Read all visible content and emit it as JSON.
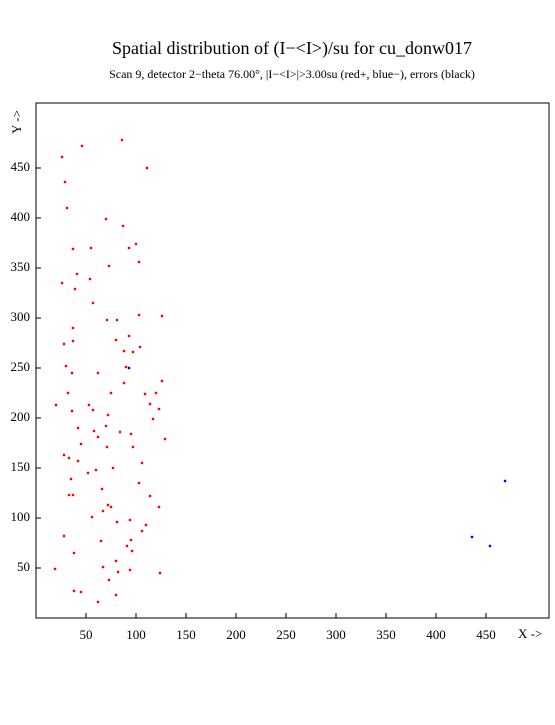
{
  "chart_data": {
    "type": "scatter",
    "title": "Spatial distribution of (I−<I>)/su for cu_donw017",
    "subtitle": "Scan  9, detector 2−theta  76.00°, |I−<I>|>3.00su (red+, blue−), errors (black)",
    "x_label": "X ->",
    "y_label": "Y ->",
    "xlim": [
      0,
      513
    ],
    "ylim": [
      0,
      515
    ],
    "xticks": [
      50,
      100,
      150,
      200,
      250,
      300,
      350,
      400,
      450
    ],
    "yticks": [
      50,
      100,
      150,
      200,
      250,
      300,
      350,
      400,
      450
    ],
    "series": [
      {
        "color": "#ff0000",
        "x": [
          86,
          46,
          26,
          111,
          29,
          31,
          70,
          87,
          100,
          55,
          93,
          37,
          103,
          73,
          41,
          54,
          26,
          39,
          57,
          103,
          126,
          71,
          81,
          37,
          93,
          37,
          80,
          28,
          104,
          88,
          97,
          30,
          90,
          62,
          36,
          126,
          88,
          75,
          32,
          109,
          120,
          114,
          20,
          53,
          123,
          57,
          36,
          72,
          117,
          70,
          42,
          58,
          84,
          95,
          62,
          45,
          129,
          97,
          71,
          28,
          33,
          42,
          106,
          77,
          60,
          52,
          35,
          103,
          66,
          37,
          33,
          114,
          72,
          75,
          123,
          56,
          67,
          94,
          81,
          110,
          106,
          28,
          65,
          95,
          91,
          38,
          96,
          80,
          67,
          19,
          94,
          82,
          124,
          73,
          38,
          45,
          80,
          62
        ],
        "y": [
          478,
          472,
          461,
          450,
          436,
          410,
          399,
          392,
          374,
          370,
          370,
          369,
          356,
          352,
          344,
          339,
          335,
          329,
          315,
          303,
          302,
          298,
          298,
          290,
          282,
          277,
          278,
          274,
          271,
          267,
          266,
          252,
          251,
          245,
          245,
          237,
          235,
          225,
          225,
          224,
          225,
          214,
          213,
          213,
          209,
          208,
          207,
          203,
          199,
          192,
          190,
          187,
          186,
          184,
          181,
          174,
          179,
          171,
          171,
          163,
          160,
          157,
          155,
          150,
          148,
          145,
          139,
          135,
          129,
          123,
          123,
          122,
          113,
          111,
          111,
          101,
          107,
          98,
          96,
          93,
          87,
          82,
          77,
          78,
          72,
          65,
          67,
          57,
          51,
          49,
          48,
          46,
          45,
          38,
          27,
          26,
          23,
          16
        ]
      },
      {
        "color": "#0000ff",
        "x": [
          93,
          469,
          436,
          454
        ],
        "y": [
          250,
          137,
          81,
          72
        ]
      }
    ]
  }
}
